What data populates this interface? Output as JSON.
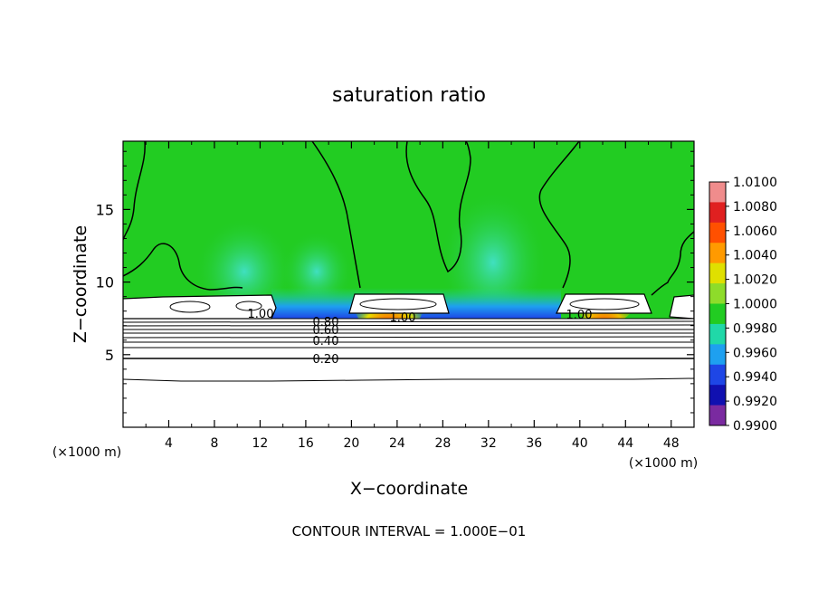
{
  "chart_data": {
    "type": "heatmap",
    "title": "saturation ratio",
    "xlabel": "X−coordinate",
    "ylabel": "Z−coordinate",
    "x_unit_label_left": "(×1000 m)",
    "x_unit_label_right": "(×1000 m)",
    "x_ticks": [
      4,
      8,
      12,
      16,
      20,
      24,
      28,
      32,
      36,
      40,
      44,
      48
    ],
    "y_ticks": [
      5,
      10,
      15
    ],
    "xlim": [
      0,
      50
    ],
    "ylim": [
      0,
      19.7
    ],
    "colorbar_labels": [
      "1.0100",
      "1.0080",
      "1.0060",
      "1.0040",
      "1.0020",
      "1.0000",
      "0.9980",
      "0.9960",
      "0.9940",
      "0.9920",
      "0.9900"
    ],
    "colorbar_colors": [
      "#f08c8c",
      "#e02020",
      "#ff5000",
      "#ff9a00",
      "#e0e000",
      "#8edc2a",
      "#22cc22",
      "#20d8a8",
      "#1ea0f0",
      "#1e46e6",
      "#1010b0",
      "#7a2aa0"
    ],
    "contour_labels": [
      {
        "text": "1.00",
        "x": 11.9,
        "z": 8.1
      },
      {
        "text": "1.00",
        "x": 24.0,
        "z": 7.7
      },
      {
        "text": "1.00",
        "x": 39.9,
        "z": 7.8
      },
      {
        "text": "0.80",
        "x": 17.8,
        "z": 7.4
      },
      {
        "text": "0.60",
        "x": 17.8,
        "z": 6.9
      },
      {
        "text": "0.40",
        "x": 17.8,
        "z": 6.1
      },
      {
        "text": "0.20",
        "x": 17.8,
        "z": 4.9
      }
    ],
    "annotation": "CONTOUR INTERVAL = 1.000E−01"
  }
}
